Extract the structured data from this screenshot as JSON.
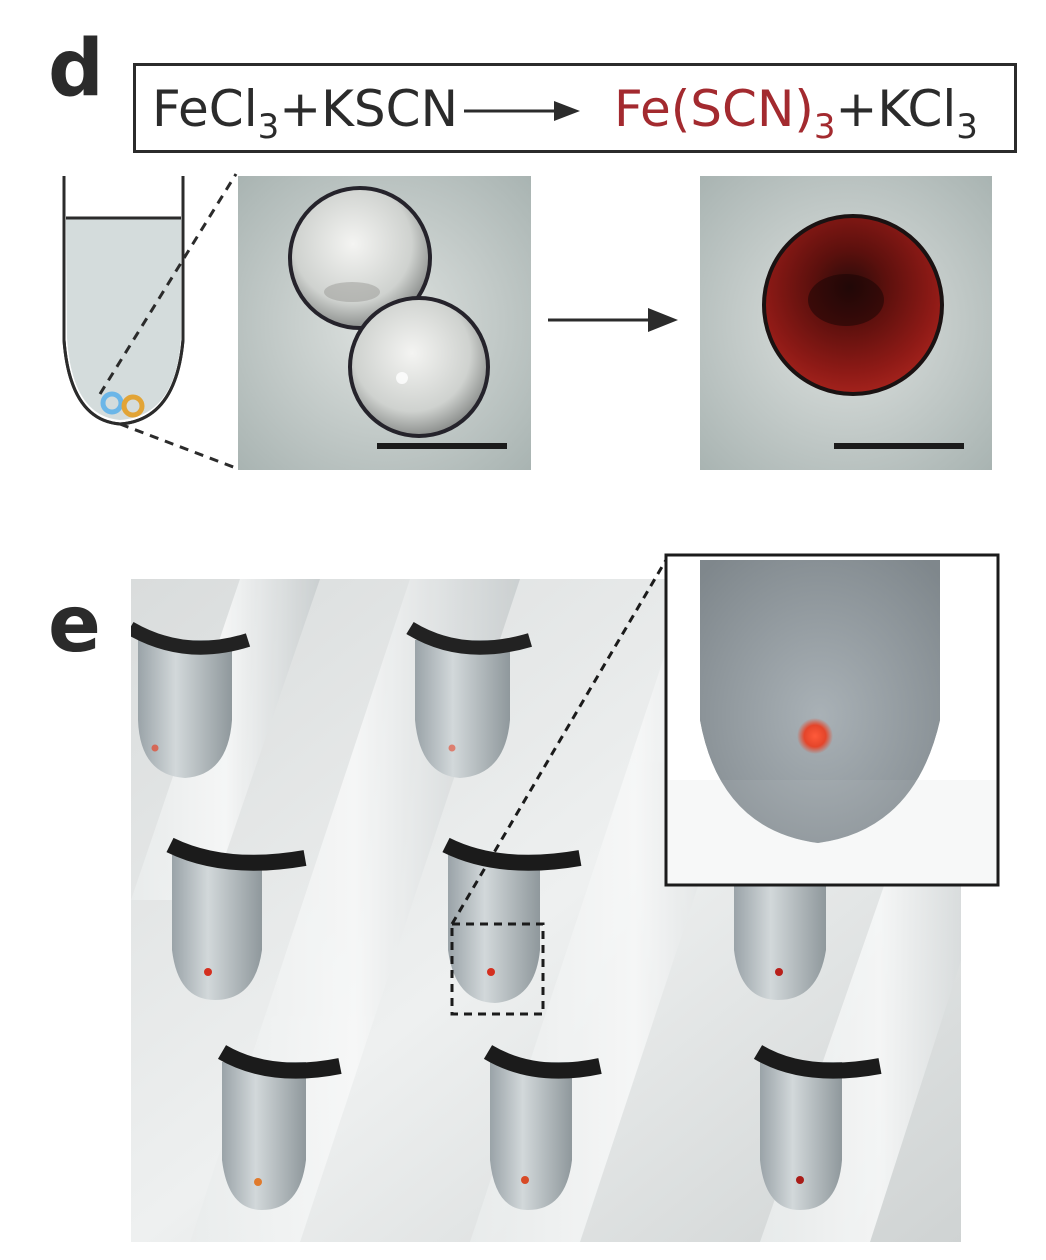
{
  "panel_d": {
    "label": "d",
    "equation": {
      "reactant_1": "FeCl",
      "reactant_1_sub": "3",
      "plus_1": "+KSCN",
      "product_1": "Fe(SCN)",
      "product_1_sub": "3",
      "plus_2": "+KCl",
      "product_2_sub": "3"
    },
    "droplet_colors": {
      "left": "#6bb6e8",
      "right": "#e2a436"
    },
    "product_color": "#8e1a16"
  },
  "panel_e": {
    "label": "e",
    "drop_color": "#e4452a"
  }
}
